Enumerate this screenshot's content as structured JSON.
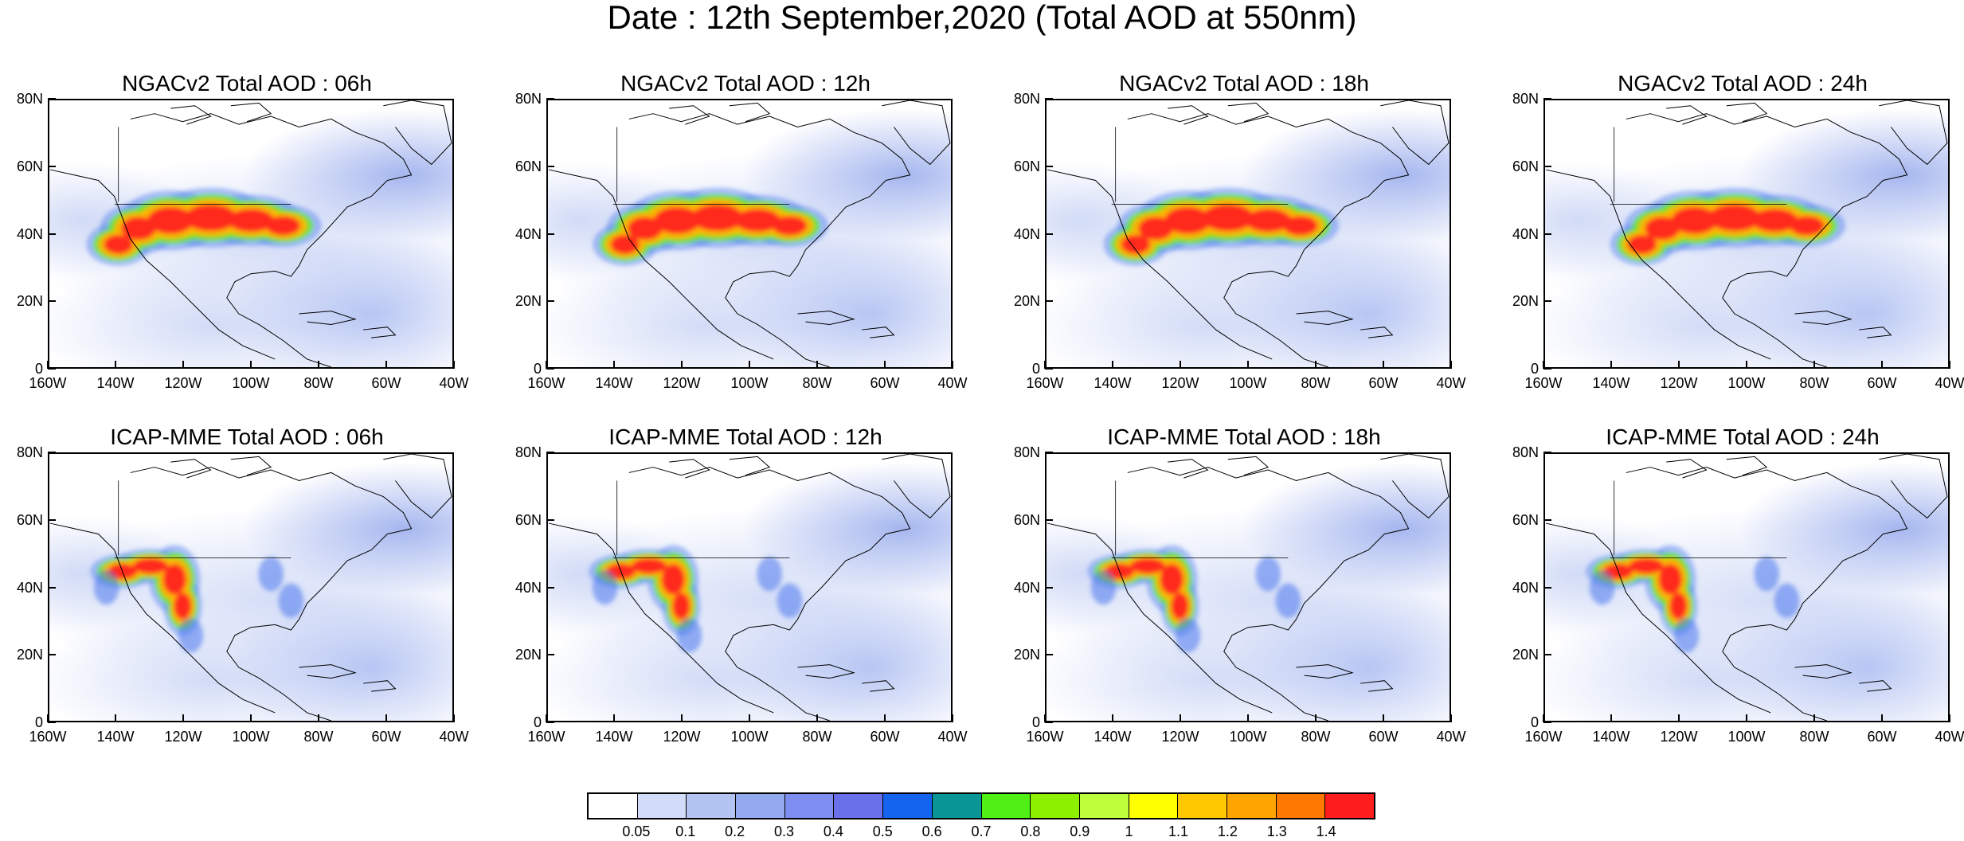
{
  "title": "Date : 12th September,2020 (Total AOD at 550nm)",
  "axes": {
    "lat_labels": [
      "80N",
      "60N",
      "40N",
      "20N",
      "0"
    ],
    "lon_labels": [
      "160W",
      "140W",
      "120W",
      "100W",
      "80W",
      "60W",
      "40W"
    ],
    "lat_range": [
      0,
      80
    ],
    "lon_range": [
      -160,
      -40
    ]
  },
  "panels": [
    {
      "title": "NGACv2 Total AOD : 06h",
      "model": "NGACv2",
      "forecast_hour": "06h"
    },
    {
      "title": "NGACv2 Total AOD : 12h",
      "model": "NGACv2",
      "forecast_hour": "12h"
    },
    {
      "title": "NGACv2 Total AOD : 18h",
      "model": "NGACv2",
      "forecast_hour": "18h"
    },
    {
      "title": "NGACv2 Total AOD : 24h",
      "model": "NGACv2",
      "forecast_hour": "24h"
    },
    {
      "title": "ICAP-MME Total AOD : 06h",
      "model": "ICAP-MME",
      "forecast_hour": "06h"
    },
    {
      "title": "ICAP-MME Total AOD : 12h",
      "model": "ICAP-MME",
      "forecast_hour": "12h"
    },
    {
      "title": "ICAP-MME Total AOD : 18h",
      "model": "ICAP-MME",
      "forecast_hour": "18h"
    },
    {
      "title": "ICAP-MME Total AOD : 24h",
      "model": "ICAP-MME",
      "forecast_hour": "24h"
    }
  ],
  "colorbar": {
    "colors": [
      "#ffffff",
      "#d2dcf8",
      "#b4c4f2",
      "#94aaf0",
      "#7d8ef0",
      "#6a70ea",
      "#1464f0",
      "#0a9696",
      "#50f014",
      "#8cf000",
      "#beff3c",
      "#ffff00",
      "#ffc800",
      "#ffa500",
      "#ff7800",
      "#ff1e1e"
    ],
    "labels": [
      "0.05",
      "0.1",
      "0.2",
      "0.3",
      "0.4",
      "0.5",
      "0.6",
      "0.7",
      "0.8",
      "0.9",
      "1",
      "1.1",
      "1.2",
      "1.3",
      "1.4"
    ]
  },
  "smoke_colors": {
    "high": "#ff2a1a",
    "mid": "#ffb400",
    "low": "#64e61e",
    "edge": "#4a78ee"
  }
}
